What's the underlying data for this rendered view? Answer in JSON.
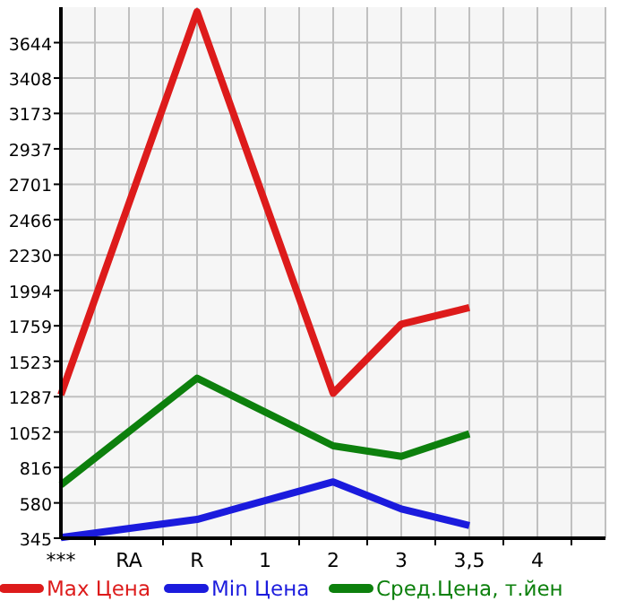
{
  "chart_data": {
    "type": "line",
    "categories": [
      "***",
      "RA",
      "R",
      "1",
      "2",
      "3",
      "3,5",
      "4"
    ],
    "series": [
      {
        "name": "Max Цена",
        "color": "#dd1b1b",
        "values": [
          1300,
          null,
          3850,
          null,
          1310,
          1770,
          1880,
          null
        ]
      },
      {
        "name": "Min Цена",
        "color": "#1b1bdd",
        "values": [
          350,
          null,
          470,
          null,
          720,
          540,
          430,
          null
        ]
      },
      {
        "name": "Сред.Цена, т.йен",
        "color": "#0d800d",
        "values": [
          700,
          null,
          1410,
          null,
          960,
          890,
          1040,
          null
        ]
      }
    ],
    "ylim": [
      345,
      3880
    ],
    "yticks": [
      345,
      580,
      816,
      1052,
      1287,
      1523,
      1759,
      1994,
      2230,
      2466,
      2701,
      2937,
      3173,
      3408,
      3644
    ],
    "grid": true,
    "legend": "bottom",
    "marker": "none",
    "line_style": "solid"
  }
}
